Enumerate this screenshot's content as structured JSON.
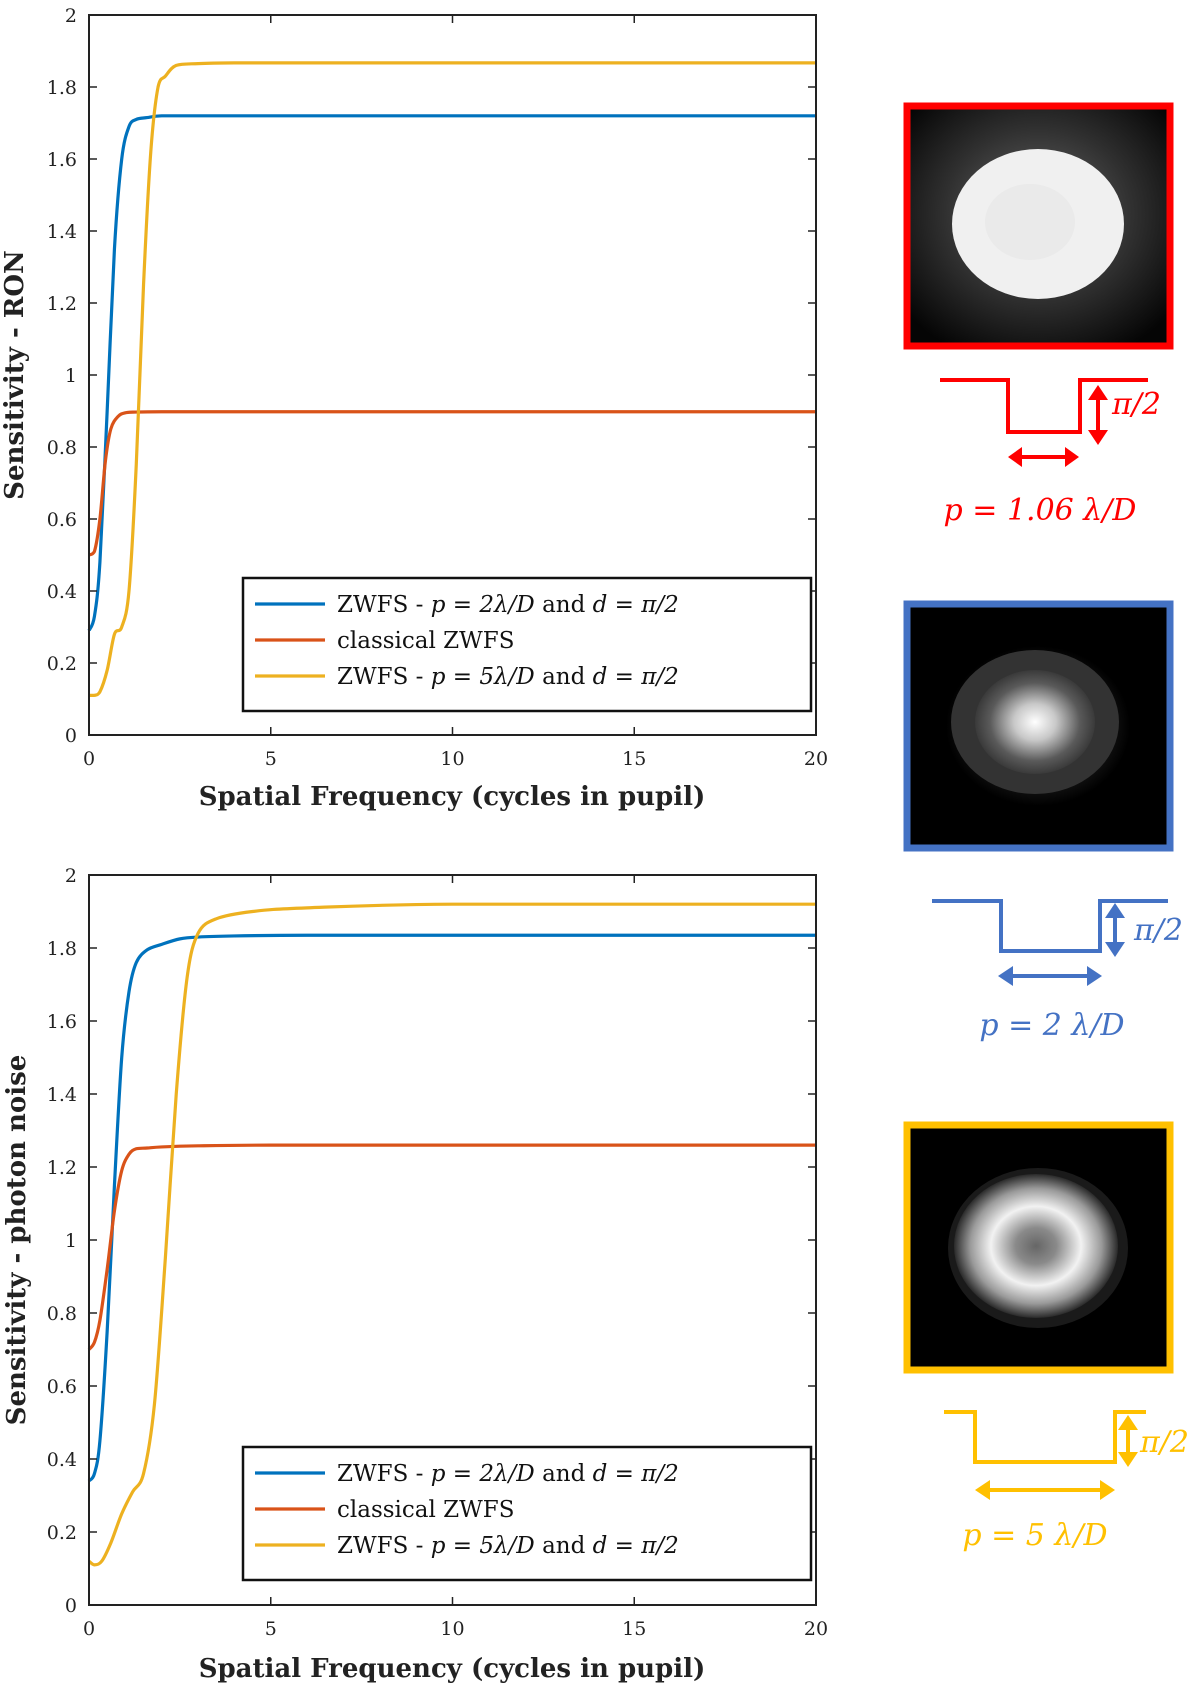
{
  "colors": {
    "blue": "#0072BD",
    "orange": "#D95319",
    "yellow": "#EDB120",
    "frame_red": "#FF0000",
    "frame_blue": "#4472C4",
    "frame_yellow": "#FFC000",
    "axis": "#222222"
  },
  "chart_data": [
    {
      "type": "line",
      "xlabel": "Spatial Frequency (cycles in pupil)",
      "ylabel": "Sensitivity - RON",
      "xlim": [
        0,
        20
      ],
      "ylim": [
        0,
        2
      ],
      "xticks": [
        0,
        5,
        10,
        15,
        20
      ],
      "yticks": [
        0,
        0.2,
        0.4,
        0.6,
        0.8,
        1,
        1.2,
        1.4,
        1.6,
        1.8,
        2
      ],
      "ytick_labels": [
        "0",
        "0.2",
        "0.4",
        "0.6",
        "0.8",
        "1",
        "1.2",
        "1.4",
        "1.6",
        "1.8",
        "2"
      ],
      "legend": {
        "placement": "bottom-right",
        "entries": [
          {
            "prefix": "ZWFS - ",
            "math": "p = 2λ/D",
            "mid": " and ",
            "math2": "d = π/2"
          },
          {
            "prefix": "classical ZWFS",
            "math": "",
            "mid": "",
            "math2": ""
          },
          {
            "prefix": "ZWFS - ",
            "math": "p = 5λ/D",
            "mid": " and ",
            "math2": "d = π/2"
          }
        ]
      },
      "series": [
        {
          "name": "ZWFS - p = 2λ/D and d = π/2",
          "color_key": "blue",
          "x": [
            0,
            0.15,
            0.3,
            0.5,
            0.7,
            0.9,
            1.1,
            1.3,
            1.6,
            2,
            3,
            5,
            10,
            15,
            20
          ],
          "y": [
            0.29,
            0.33,
            0.48,
            0.9,
            1.35,
            1.6,
            1.69,
            1.71,
            1.715,
            1.72,
            1.72,
            1.72,
            1.72,
            1.72,
            1.72
          ]
        },
        {
          "name": "classical ZWFS",
          "color_key": "orange",
          "x": [
            0,
            0.15,
            0.3,
            0.45,
            0.6,
            0.8,
            1.0,
            1.3,
            2,
            5,
            10,
            20
          ],
          "y": [
            0.5,
            0.51,
            0.6,
            0.76,
            0.85,
            0.885,
            0.895,
            0.897,
            0.898,
            0.898,
            0.898,
            0.898
          ]
        },
        {
          "name": "ZWFS - p = 5λ/D and d = π/2",
          "color_key": "yellow",
          "x": [
            0,
            0.15,
            0.3,
            0.5,
            0.7,
            0.9,
            1.1,
            1.3,
            1.5,
            1.7,
            1.9,
            2.1,
            2.4,
            3,
            4,
            6,
            10,
            20
          ],
          "y": [
            0.11,
            0.11,
            0.12,
            0.18,
            0.28,
            0.3,
            0.4,
            0.75,
            1.25,
            1.62,
            1.8,
            1.83,
            1.86,
            1.865,
            1.867,
            1.867,
            1.867,
            1.867
          ]
        }
      ]
    },
    {
      "type": "line",
      "xlabel": "Spatial Frequency (cycles in pupil)",
      "ylabel": "Sensitivity - photon noise",
      "xlim": [
        0,
        20
      ],
      "ylim": [
        0,
        2
      ],
      "xticks": [
        0,
        5,
        10,
        15,
        20
      ],
      "yticks": [
        0,
        0.2,
        0.4,
        0.6,
        0.8,
        1,
        1.2,
        1.4,
        1.6,
        1.8,
        2
      ],
      "ytick_labels": [
        "0",
        "0.2",
        "0.4",
        "0.6",
        "0.8",
        "1",
        "1.2",
        "1.4",
        "1.6",
        "1.8",
        "2"
      ],
      "legend": {
        "placement": "bottom-right",
        "entries": [
          {
            "prefix": "ZWFS - ",
            "math": "p = 2λ/D",
            "mid": " and ",
            "math2": "d = π/2"
          },
          {
            "prefix": "classical ZWFS",
            "math": "",
            "mid": "",
            "math2": ""
          },
          {
            "prefix": "ZWFS - ",
            "math": "p = 5λ/D",
            "mid": " and ",
            "math2": "d = π/2"
          }
        ]
      },
      "series": [
        {
          "name": "ZWFS - p = 2λ/D and d = π/2",
          "color_key": "blue",
          "x": [
            0,
            0.15,
            0.3,
            0.5,
            0.7,
            0.9,
            1.1,
            1.3,
            1.6,
            2.0,
            2.5,
            3.0,
            4,
            6,
            10,
            20
          ],
          "y": [
            0.34,
            0.36,
            0.45,
            0.75,
            1.15,
            1.5,
            1.68,
            1.76,
            1.795,
            1.81,
            1.825,
            1.83,
            1.833,
            1.835,
            1.835,
            1.835
          ]
        },
        {
          "name": "classical ZWFS",
          "color_key": "orange",
          "x": [
            0,
            0.15,
            0.3,
            0.5,
            0.7,
            0.9,
            1.1,
            1.3,
            1.6,
            2,
            3,
            5,
            10,
            20
          ],
          "y": [
            0.7,
            0.72,
            0.78,
            0.92,
            1.08,
            1.19,
            1.235,
            1.25,
            1.252,
            1.255,
            1.258,
            1.26,
            1.26,
            1.26
          ]
        },
        {
          "name": "ZWFS - p = 5λ/D and d = π/2",
          "color_key": "yellow",
          "x": [
            0,
            0.15,
            0.35,
            0.6,
            0.9,
            1.2,
            1.5,
            1.8,
            2.1,
            2.4,
            2.7,
            3.0,
            3.5,
            4.5,
            6,
            10,
            20
          ],
          "y": [
            0.12,
            0.11,
            0.12,
            0.17,
            0.25,
            0.31,
            0.36,
            0.55,
            0.95,
            1.4,
            1.72,
            1.84,
            1.88,
            1.9,
            1.91,
            1.92,
            1.92
          ]
        }
      ]
    }
  ],
  "insets": [
    {
      "frame_key": "frame_red",
      "label": "p = 1.06 λ/D",
      "depth_label": "π/2",
      "pattern": "flat-disk"
    },
    {
      "frame_key": "frame_blue",
      "label": "p = 2 λ/D",
      "depth_label": "π/2",
      "pattern": "center-peak"
    },
    {
      "frame_key": "frame_yellow",
      "label": "p = 5 λ/D",
      "depth_label": "π/2",
      "pattern": "ring"
    }
  ]
}
